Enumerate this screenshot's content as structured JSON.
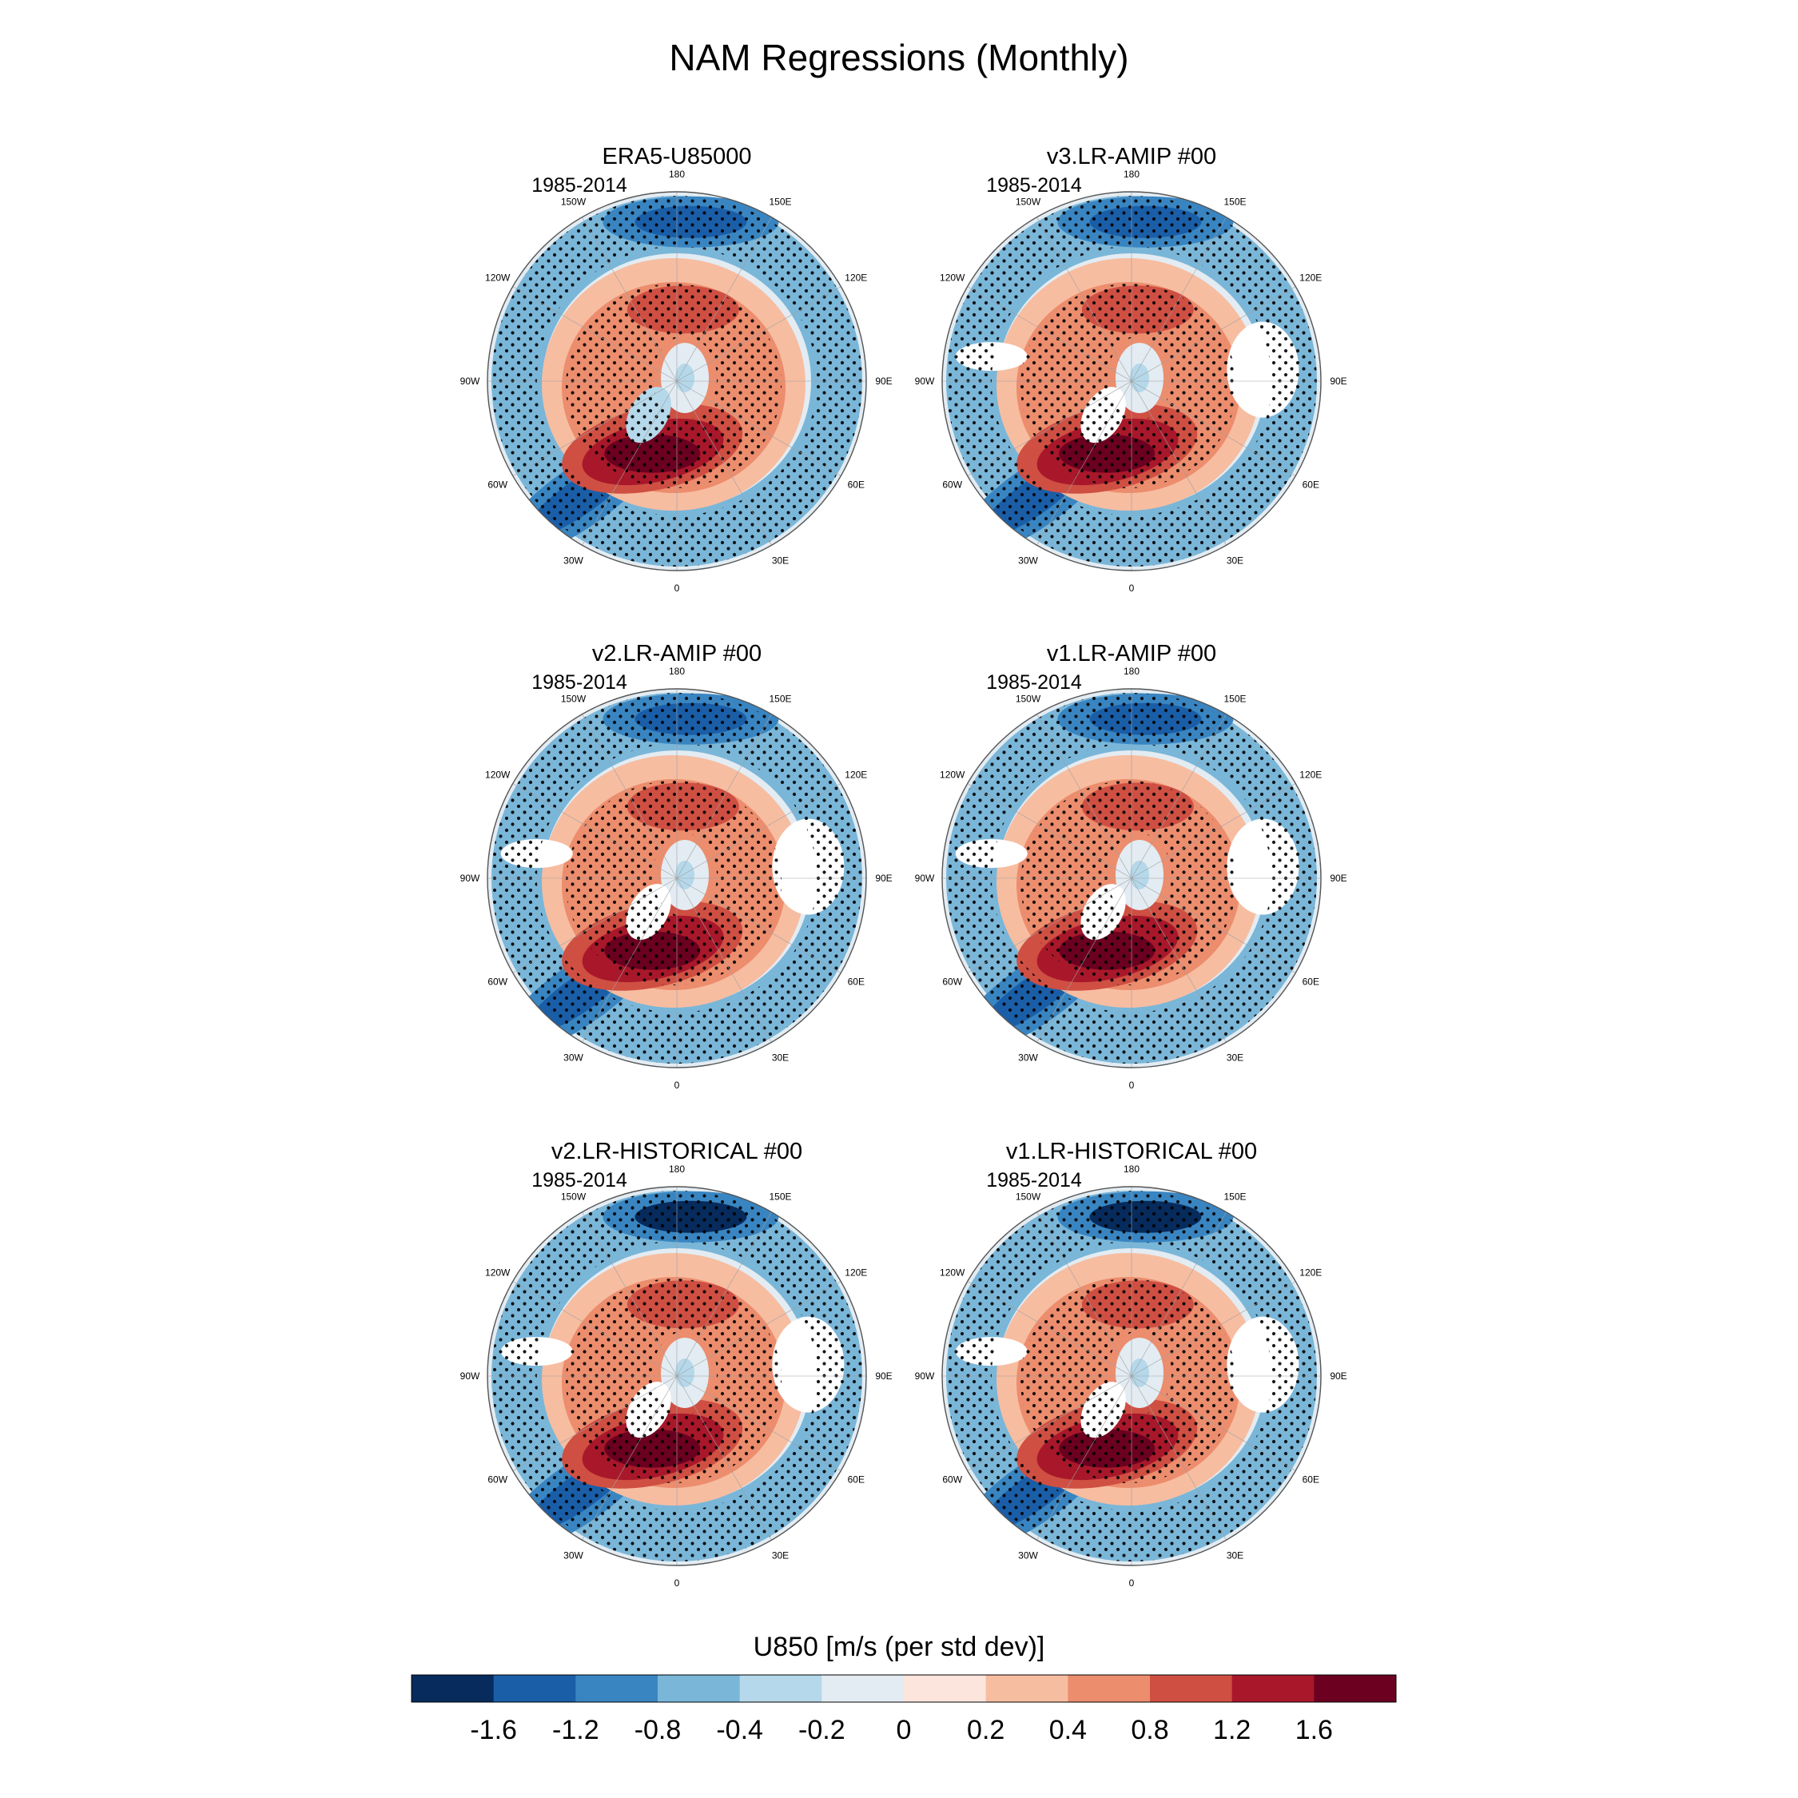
{
  "title": "NAM Regressions (Monthly)",
  "panels": [
    {
      "title": "ERA5-U85000",
      "period": "1985-2014"
    },
    {
      "title": "v3.LR-AMIP  #00",
      "period": "1985-2014"
    },
    {
      "title": "v2.LR-AMIP  #00",
      "period": "1985-2014"
    },
    {
      "title": "v1.LR-AMIP  #00",
      "period": "1985-2014"
    },
    {
      "title": "v2.LR-HISTORICAL  #00",
      "period": "1985-2014"
    },
    {
      "title": "v1.LR-HISTORICAL  #00",
      "period": "1985-2014"
    }
  ],
  "longitude_labels": [
    {
      "lon": 180,
      "text": "180"
    },
    {
      "lon": 150,
      "text": "150E"
    },
    {
      "lon": 120,
      "text": "120E"
    },
    {
      "lon": 90,
      "text": "90E"
    },
    {
      "lon": 60,
      "text": "60E"
    },
    {
      "lon": 30,
      "text": "30E"
    },
    {
      "lon": 0,
      "text": "0"
    },
    {
      "lon": -30,
      "text": "30W"
    },
    {
      "lon": -60,
      "text": "60W"
    },
    {
      "lon": -90,
      "text": "90W"
    },
    {
      "lon": -120,
      "text": "120W"
    },
    {
      "lon": -150,
      "text": "150W"
    }
  ],
  "colorbar": {
    "title": "U850 [m/s (per std dev)]",
    "colors": [
      "#062b5c",
      "#1a5ea8",
      "#3985c1",
      "#7ab6d8",
      "#b5d8ea",
      "#e3ecf2",
      "#fbe5dc",
      "#f7bda1",
      "#ec8d6e",
      "#cf4f43",
      "#a8182a",
      "#6b0020"
    ],
    "labels": [
      "-1.6",
      "-1.2",
      "-0.8",
      "-0.4",
      "-0.2",
      "0",
      "0.2",
      "0.4",
      "0.8",
      "1.2",
      "1.6"
    ]
  },
  "chart_data": {
    "type": "polar-stereographic contour maps",
    "variable": "U850",
    "units": "m/s (per std dev)",
    "hemisphere": "Northern",
    "color_levels": [
      -1.6,
      -1.2,
      -0.8,
      -0.4,
      -0.2,
      0,
      0.2,
      0.4,
      0.8,
      1.2,
      1.6
    ],
    "stippling": "statistical significance",
    "pattern": "positive ring near 55-70N, negative band in the mid-latitudes near 35-45N"
  }
}
